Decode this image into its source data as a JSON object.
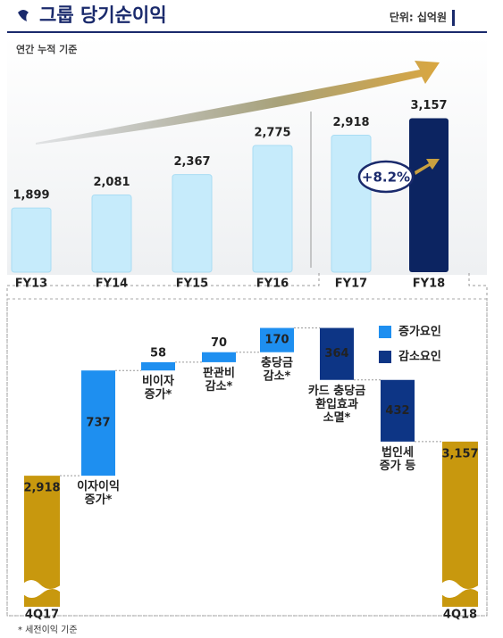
{
  "header": {
    "title": "그룹 당기순이익",
    "unit": "단위: 십억원"
  },
  "chart_data": [
    {
      "type": "bar",
      "subtitle": "연간 누적 기준",
      "categories": [
        "FY13",
        "FY14",
        "FY15",
        "FY16",
        "FY17",
        "FY18"
      ],
      "values": [
        1899,
        2081,
        2367,
        2775,
        2918,
        3157
      ],
      "value_labels": [
        "1,899",
        "2,081",
        "2,367",
        "2,775",
        "2,918",
        "3,157"
      ],
      "color": "#c6ebfb",
      "highlight_color": "#0c2461",
      "ylim": [
        1000,
        4000
      ],
      "annotation": "+8.2%"
    },
    {
      "type": "waterfall",
      "categories": [
        "4Q17",
        "이자이익\n증가*",
        "비이자\n증가*",
        "판관비\n감소*",
        "충당금\n감소*",
        "카드 충당금\n환입효과\n소멸*",
        "법인세\n증가 등",
        "4Q18"
      ],
      "values": [
        2918,
        737,
        58,
        70,
        170,
        -364,
        -432,
        3157
      ],
      "value_labels": [
        "2,918",
        "737",
        "58",
        "70",
        "170",
        "364",
        "432",
        "3,157"
      ],
      "ylim": [
        2000,
        4000
      ],
      "total_color": "#c8980e",
      "series": [
        {
          "name": "증가요인",
          "color": "#1e8ff0"
        },
        {
          "name": "감소요인",
          "color": "#0d3585"
        }
      ],
      "footnote": "* 세전이익 기준"
    }
  ]
}
